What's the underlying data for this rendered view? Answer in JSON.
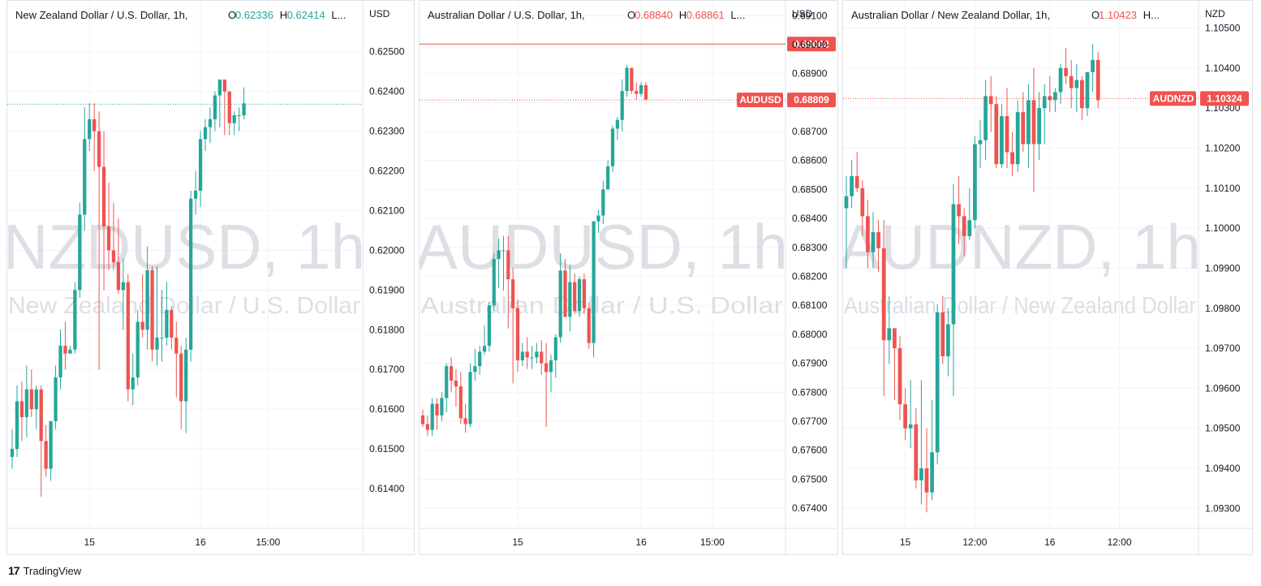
{
  "brand": {
    "logo": "17",
    "name": "TradingView"
  },
  "colors": {
    "up": "#26a69a",
    "down": "#ef5350",
    "grid": "#f0f3fa",
    "axis_text": "#131722",
    "watermark": "#d1d4dc"
  },
  "chart_data": [
    {
      "type": "candlestick",
      "symbol": "NZDUSD",
      "title": "New Zealand Dollar / U.S. Dollar, 1h,",
      "ohlc_labels": [
        {
          "key": "O",
          "value": "0.62336",
          "color": "#26a69a"
        },
        {
          "key": "H",
          "value": "0.62414",
          "color": "#26a69a"
        },
        {
          "key": "L...",
          "value": "",
          "color": "#26a69a"
        }
      ],
      "watermark_symbol": "NZDUSD, 1h",
      "watermark_desc": "New Zealand Dollar / U.S. Dollar",
      "currency": "USD",
      "y_ticks": [
        "0.62500",
        "0.62400",
        "0.62300",
        "0.62200",
        "0.62100",
        "0.62000",
        "0.61900",
        "0.61800",
        "0.61700",
        "0.61600",
        "0.61500",
        "0.61400"
      ],
      "ylim": [
        0.613,
        0.6262
      ],
      "x_labels": [
        {
          "i": 16,
          "text": "15"
        },
        {
          "i": 39,
          "text": "16"
        },
        {
          "i": 53,
          "text": "15:00"
        }
      ],
      "last_price": 0.62368,
      "candles": [
        [
          0.6148,
          0.6155,
          0.6145,
          0.615
        ],
        [
          0.615,
          0.6166,
          0.6148,
          0.6162
        ],
        [
          0.6162,
          0.6167,
          0.6152,
          0.6158
        ],
        [
          0.6158,
          0.6171,
          0.6153,
          0.6165
        ],
        [
          0.6165,
          0.617,
          0.6158,
          0.616
        ],
        [
          0.616,
          0.6166,
          0.6155,
          0.6165
        ],
        [
          0.6165,
          0.6166,
          0.6138,
          0.6152
        ],
        [
          0.6152,
          0.6156,
          0.6143,
          0.6145
        ],
        [
          0.6145,
          0.6157,
          0.6142,
          0.6157
        ],
        [
          0.6157,
          0.6171,
          0.6155,
          0.6168
        ],
        [
          0.6168,
          0.618,
          0.6165,
          0.6176
        ],
        [
          0.6176,
          0.6182,
          0.617,
          0.6174
        ],
        [
          0.6174,
          0.6176,
          0.6174,
          0.6175
        ],
        [
          0.6175,
          0.6192,
          0.6174,
          0.619
        ],
        [
          0.619,
          0.6212,
          0.6188,
          0.6209
        ],
        [
          0.6209,
          0.6236,
          0.6205,
          0.6228
        ],
        [
          0.6228,
          0.6237,
          0.6225,
          0.6233
        ],
        [
          0.6233,
          0.6237,
          0.622,
          0.623
        ],
        [
          0.623,
          0.6235,
          0.617,
          0.6221
        ],
        [
          0.6221,
          0.623,
          0.619,
          0.6206
        ],
        [
          0.6206,
          0.6217,
          0.6195,
          0.62
        ],
        [
          0.62,
          0.6212,
          0.6195,
          0.6197
        ],
        [
          0.6197,
          0.6208,
          0.6189,
          0.619
        ],
        [
          0.619,
          0.6198,
          0.618,
          0.6192
        ],
        [
          0.6192,
          0.6194,
          0.6162,
          0.6165
        ],
        [
          0.6165,
          0.6174,
          0.6161,
          0.6168
        ],
        [
          0.6168,
          0.6185,
          0.6166,
          0.6182
        ],
        [
          0.6182,
          0.6194,
          0.6178,
          0.618
        ],
        [
          0.618,
          0.6201,
          0.6175,
          0.6195
        ],
        [
          0.6195,
          0.6196,
          0.6172,
          0.6175
        ],
        [
          0.6175,
          0.6196,
          0.6171,
          0.6178
        ],
        [
          0.6178,
          0.619,
          0.6172,
          0.6178
        ],
        [
          0.6178,
          0.6192,
          0.6176,
          0.6185
        ],
        [
          0.6185,
          0.6186,
          0.6175,
          0.6178
        ],
        [
          0.6178,
          0.6182,
          0.6163,
          0.6174
        ],
        [
          0.6174,
          0.6176,
          0.6155,
          0.6162
        ],
        [
          0.6162,
          0.6178,
          0.6154,
          0.6175
        ],
        [
          0.6175,
          0.6215,
          0.6172,
          0.6213
        ],
        [
          0.6213,
          0.622,
          0.6209,
          0.6215
        ],
        [
          0.6215,
          0.623,
          0.6211,
          0.6228
        ],
        [
          0.6228,
          0.6233,
          0.6225,
          0.6231
        ],
        [
          0.6231,
          0.6236,
          0.6227,
          0.6233
        ],
        [
          0.6233,
          0.624,
          0.623,
          0.6239
        ],
        [
          0.6239,
          0.6243,
          0.6231,
          0.6243
        ],
        [
          0.6243,
          0.6242,
          0.6229,
          0.624
        ],
        [
          0.624,
          0.624,
          0.6229,
          0.6232
        ],
        [
          0.6232,
          0.6235,
          0.6229,
          0.6234
        ],
        [
          0.6234,
          0.6236,
          0.623,
          0.6234
        ],
        [
          0.6234,
          0.6241,
          0.6233,
          0.6237
        ]
      ]
    },
    {
      "type": "candlestick",
      "symbol": "AUDUSD",
      "title": "Australian Dollar / U.S. Dollar, 1h,",
      "ohlc_labels": [
        {
          "key": "O",
          "value": "0.68840",
          "color": "#ef5350"
        },
        {
          "key": "H",
          "value": "0.68861",
          "color": "#ef5350"
        },
        {
          "key": "L...",
          "value": "",
          "color": "#ef5350"
        }
      ],
      "watermark_symbol": "AUDUSD, 1h",
      "watermark_desc": "Australian Dollar / U.S. Dollar",
      "currency": "USD",
      "y_ticks": [
        "0.69100",
        "0.69000",
        "0.68900",
        "0.68800",
        "0.68700",
        "0.68600",
        "0.68500",
        "0.68400",
        "0.68300",
        "0.68200",
        "0.68100",
        "0.68000",
        "0.67900",
        "0.67800",
        "0.67700",
        "0.67600",
        "0.67500",
        "0.67400"
      ],
      "ylim": [
        0.6733,
        0.6914
      ],
      "x_labels": [
        {
          "i": 20,
          "text": "15"
        },
        {
          "i": 46,
          "text": "16"
        },
        {
          "i": 61,
          "text": "15:00"
        }
      ],
      "last_price": 0.68809,
      "hline": {
        "value": 0.69002,
        "label": "0.69002"
      },
      "price_tag": {
        "symbol": "AUDUSD",
        "value": "0.68809"
      },
      "candles": [
        [
          0.6772,
          0.6774,
          0.6768,
          0.6769
        ],
        [
          0.6769,
          0.6772,
          0.6765,
          0.6767
        ],
        [
          0.6767,
          0.6778,
          0.6765,
          0.6776
        ],
        [
          0.6776,
          0.6778,
          0.6767,
          0.6772
        ],
        [
          0.6772,
          0.678,
          0.677,
          0.6778
        ],
        [
          0.6778,
          0.679,
          0.6773,
          0.6789
        ],
        [
          0.6789,
          0.6792,
          0.678,
          0.6784
        ],
        [
          0.6784,
          0.6788,
          0.6775,
          0.6782
        ],
        [
          0.6782,
          0.6787,
          0.6769,
          0.6771
        ],
        [
          0.6771,
          0.6776,
          0.6766,
          0.6769
        ],
        [
          0.6769,
          0.679,
          0.6768,
          0.6787
        ],
        [
          0.6787,
          0.6795,
          0.6784,
          0.6789
        ],
        [
          0.6789,
          0.6796,
          0.6786,
          0.6794
        ],
        [
          0.6794,
          0.6803,
          0.6793,
          0.6796
        ],
        [
          0.6796,
          0.6811,
          0.6794,
          0.681
        ],
        [
          0.681,
          0.6828,
          0.6808,
          0.6826
        ],
        [
          0.6826,
          0.6833,
          0.6816,
          0.6829
        ],
        [
          0.6829,
          0.6834,
          0.6815,
          0.6829
        ],
        [
          0.6829,
          0.6834,
          0.6802,
          0.6819
        ],
        [
          0.6819,
          0.6823,
          0.6783,
          0.6809
        ],
        [
          0.6809,
          0.6812,
          0.6787,
          0.6791
        ],
        [
          0.6791,
          0.6797,
          0.6789,
          0.6794
        ],
        [
          0.6794,
          0.6799,
          0.6788,
          0.6792
        ],
        [
          0.6792,
          0.6796,
          0.6788,
          0.6792
        ],
        [
          0.6792,
          0.6797,
          0.679,
          0.6794
        ],
        [
          0.6794,
          0.6798,
          0.6786,
          0.679
        ],
        [
          0.679,
          0.6797,
          0.6768,
          0.6787
        ],
        [
          0.6787,
          0.6793,
          0.678,
          0.6791
        ],
        [
          0.6791,
          0.68,
          0.6785,
          0.6799
        ],
        [
          0.6799,
          0.6828,
          0.6797,
          0.6822
        ],
        [
          0.6822,
          0.6826,
          0.6806,
          0.6806
        ],
        [
          0.6806,
          0.6824,
          0.6801,
          0.6818
        ],
        [
          0.6818,
          0.6821,
          0.6807,
          0.6808
        ],
        [
          0.6808,
          0.682,
          0.6806,
          0.6819
        ],
        [
          0.6819,
          0.6821,
          0.6807,
          0.6809
        ],
        [
          0.6809,
          0.6811,
          0.6795,
          0.6797
        ],
        [
          0.6797,
          0.6838,
          0.6792,
          0.6839
        ],
        [
          0.6839,
          0.6843,
          0.6835,
          0.6841
        ],
        [
          0.6841,
          0.6853,
          0.6838,
          0.685
        ],
        [
          0.685,
          0.686,
          0.685,
          0.6858
        ],
        [
          0.6858,
          0.6872,
          0.6856,
          0.6871
        ],
        [
          0.6871,
          0.6875,
          0.6867,
          0.6874
        ],
        [
          0.6874,
          0.6888,
          0.687,
          0.6884
        ],
        [
          0.6884,
          0.6893,
          0.6882,
          0.6892
        ],
        [
          0.6892,
          0.6892,
          0.6883,
          0.6884
        ],
        [
          0.6884,
          0.6887,
          0.6881,
          0.6883
        ],
        [
          0.6883,
          0.6887,
          0.6882,
          0.6886
        ],
        [
          0.6886,
          0.6887,
          0.6881,
          0.6881
        ]
      ]
    },
    {
      "type": "candlestick",
      "symbol": "AUDNZD",
      "title": "Australian Dollar / New Zealand Dollar, 1h,",
      "ohlc_labels": [
        {
          "key": "O",
          "value": "1.10423",
          "color": "#ef5350"
        },
        {
          "key": "H...",
          "value": "",
          "color": "#ef5350"
        }
      ],
      "watermark_symbol": "AUDNZD, 1h",
      "watermark_desc": "Australian Dollar / New Zealand Dollar",
      "currency": "NZD",
      "y_ticks": [
        "1.10500",
        "1.10400",
        "1.10300",
        "1.10200",
        "1.10100",
        "1.10000",
        "1.09900",
        "1.09800",
        "1.09700",
        "1.09600",
        "1.09500",
        "1.09400",
        "1.09300"
      ],
      "ylim": [
        1.0925,
        1.1056
      ],
      "x_labels": [
        {
          "i": 11,
          "text": "15"
        },
        {
          "i": 24,
          "text": "12:00"
        },
        {
          "i": 38,
          "text": "16"
        },
        {
          "i": 51,
          "text": "12:00"
        }
      ],
      "last_price": 1.10324,
      "price_tag": {
        "symbol": "AUDNZD",
        "value": "1.10324"
      },
      "candles": [
        [
          1.1005,
          1.1013,
          1.099,
          1.1008
        ],
        [
          1.1008,
          1.1017,
          1.1005,
          1.1013
        ],
        [
          1.1013,
          1.1019,
          1.1009,
          1.101
        ],
        [
          1.101,
          1.1012,
          1.0998,
          1.1003
        ],
        [
          1.1003,
          1.1007,
          1.099,
          1.0994
        ],
        [
          1.0994,
          1.1004,
          1.099,
          1.0999
        ],
        [
          1.0999,
          1.1002,
          1.0989,
          1.0995
        ],
        [
          1.0995,
          1.1002,
          1.0958,
          1.0972
        ],
        [
          1.0972,
          1.0983,
          1.0966,
          1.0975
        ],
        [
          1.0975,
          1.0974,
          1.0957,
          1.097
        ],
        [
          1.097,
          1.0973,
          1.0952,
          1.0956
        ],
        [
          1.0956,
          1.096,
          1.0947,
          1.095
        ],
        [
          1.095,
          1.0962,
          1.0945,
          1.0951
        ],
        [
          1.0951,
          1.0955,
          1.0935,
          1.0937
        ],
        [
          1.0937,
          1.0962,
          1.0931,
          1.094
        ],
        [
          1.094,
          1.095,
          1.0929,
          1.0934
        ],
        [
          1.0934,
          1.0957,
          1.0932,
          1.0944
        ],
        [
          1.0944,
          1.0981,
          1.0941,
          1.0979
        ],
        [
          1.0979,
          1.0983,
          1.0966,
          1.0968
        ],
        [
          1.0968,
          1.098,
          1.0963,
          1.0976
        ],
        [
          1.0976,
          1.1011,
          1.0958,
          1.1006
        ],
        [
          1.1006,
          1.1013,
          1.0996,
          1.1003
        ],
        [
          1.1003,
          1.1005,
          1.0993,
          1.0998
        ],
        [
          1.0998,
          1.101,
          1.0997,
          1.1002
        ],
        [
          1.1002,
          1.1023,
          1.1,
          1.1021
        ],
        [
          1.1021,
          1.1027,
          1.1015,
          1.1022
        ],
        [
          1.1022,
          1.1037,
          1.1017,
          1.1033
        ],
        [
          1.1033,
          1.1038,
          1.1024,
          1.1031
        ],
        [
          1.1031,
          1.1033,
          1.1015,
          1.1016
        ],
        [
          1.1016,
          1.1031,
          1.1015,
          1.1028
        ],
        [
          1.1028,
          1.1035,
          1.1015,
          1.1019
        ],
        [
          1.1019,
          1.1024,
          1.1013,
          1.1016
        ],
        [
          1.1016,
          1.1032,
          1.1014,
          1.1029
        ],
        [
          1.1029,
          1.1034,
          1.1019,
          1.1021
        ],
        [
          1.1021,
          1.1036,
          1.1015,
          1.1032
        ],
        [
          1.1032,
          1.104,
          1.1009,
          1.1021
        ],
        [
          1.1021,
          1.1034,
          1.1017,
          1.103
        ],
        [
          1.103,
          1.1036,
          1.1021,
          1.1033
        ],
        [
          1.1033,
          1.1038,
          1.1029,
          1.1032
        ],
        [
          1.1032,
          1.1035,
          1.1029,
          1.1034
        ],
        [
          1.1034,
          1.1041,
          1.1031,
          1.104
        ],
        [
          1.104,
          1.1045,
          1.1036,
          1.1038
        ],
        [
          1.1038,
          1.1042,
          1.103,
          1.1035
        ],
        [
          1.1035,
          1.1041,
          1.1029,
          1.1037
        ],
        [
          1.1037,
          1.1038,
          1.1027,
          1.103
        ],
        [
          1.103,
          1.1038,
          1.1028,
          1.1039
        ],
        [
          1.1039,
          1.1046,
          1.1034,
          1.1042
        ],
        [
          1.1042,
          1.1044,
          1.103,
          1.1032
        ]
      ]
    }
  ]
}
